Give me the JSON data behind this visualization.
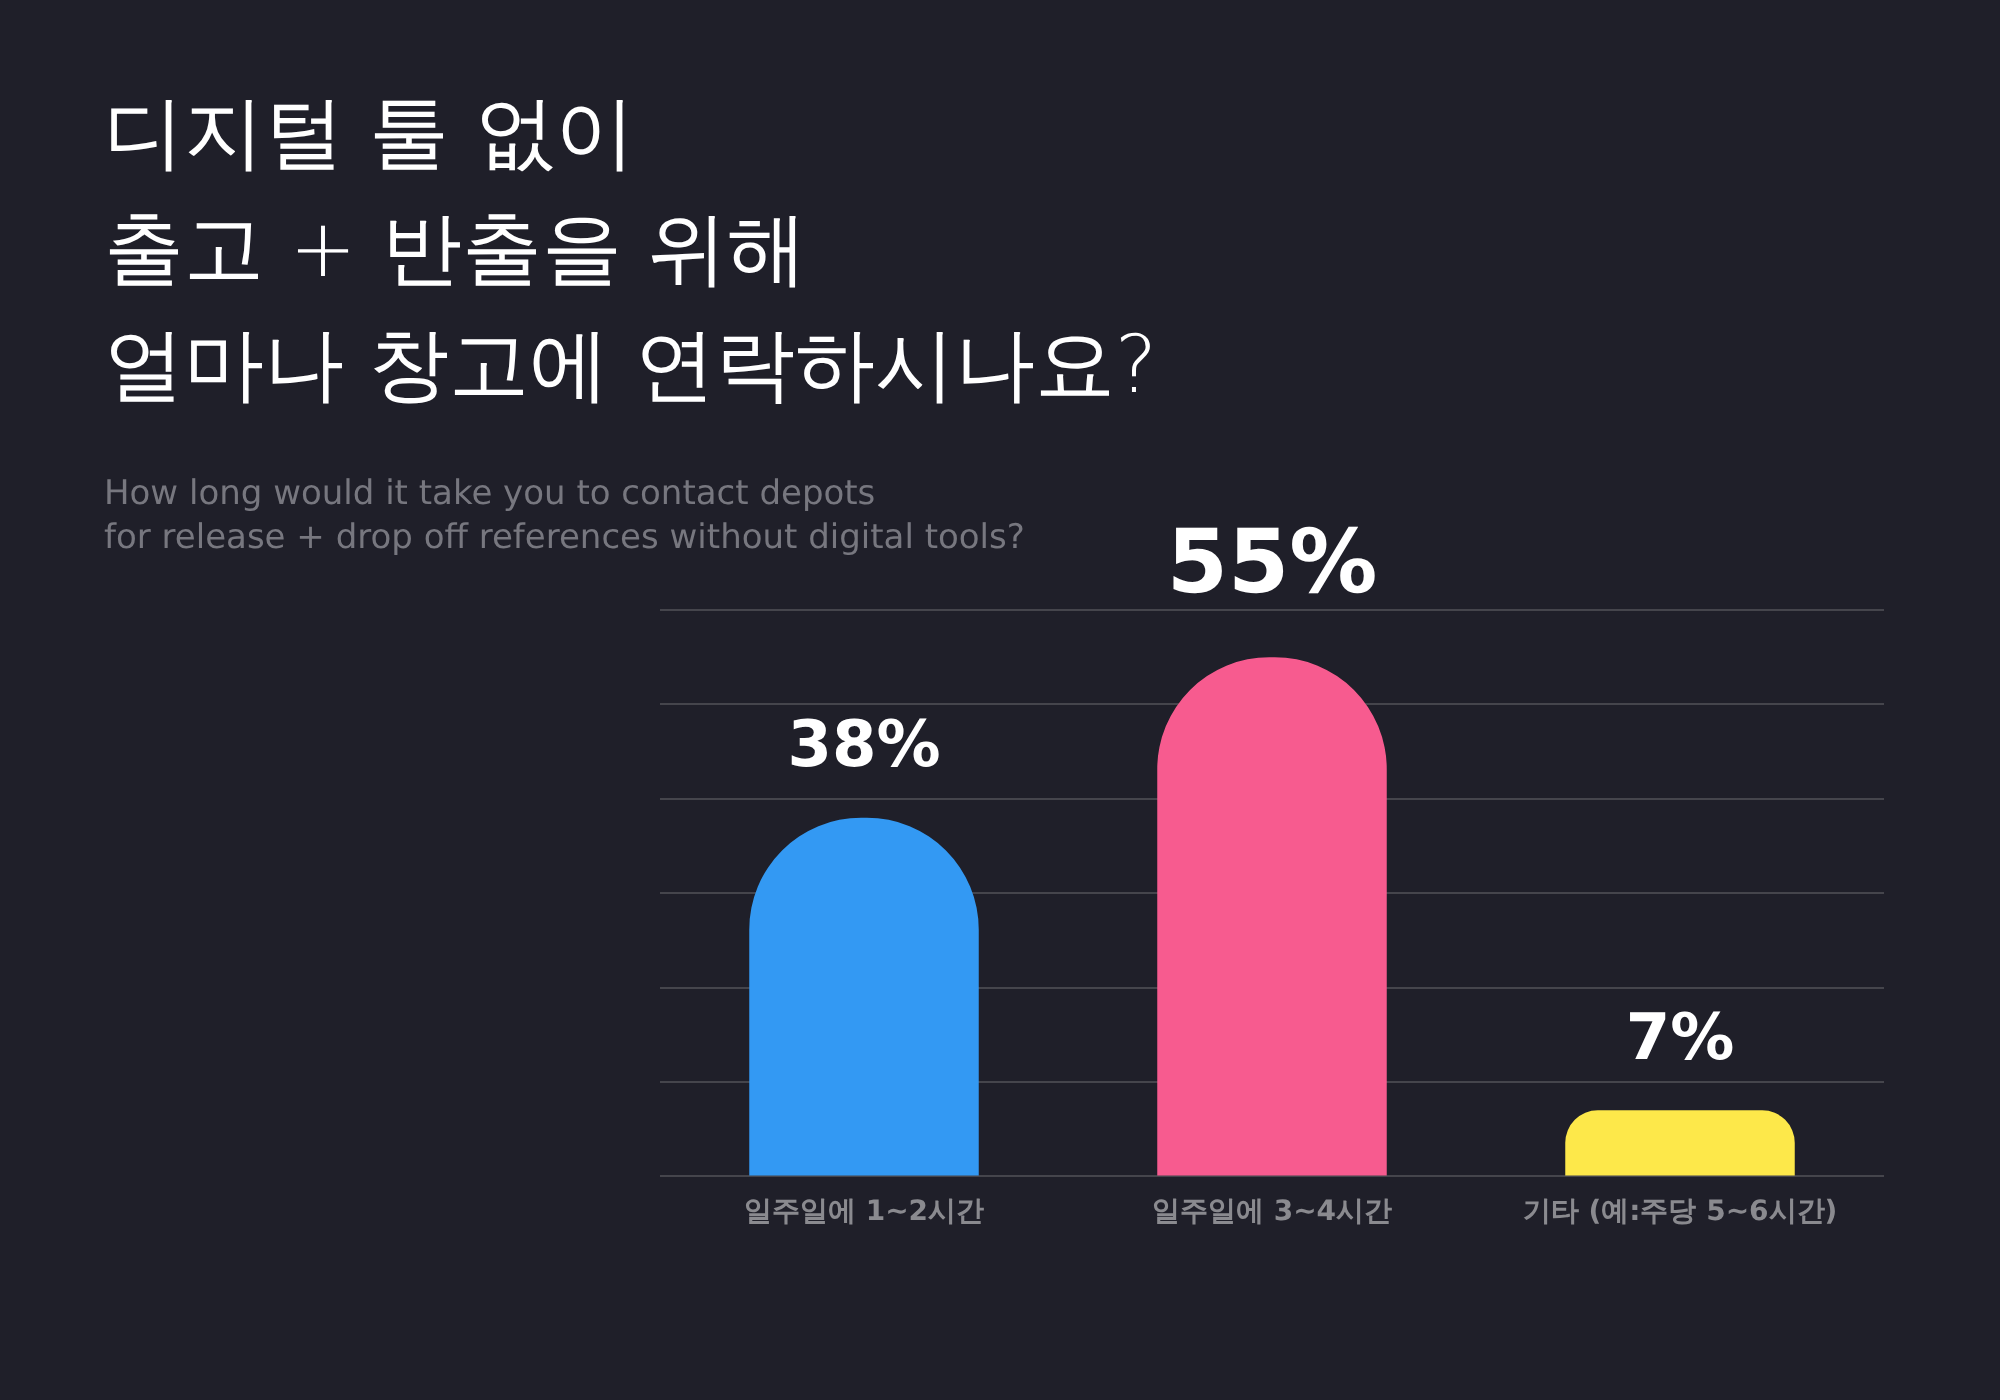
{
  "chart_data": {
    "type": "bar",
    "title": "디지털 툴 없이\n출고 + 반출을 위해\n얼마나 창고에 연락하시나요?",
    "subtitle": "How long would it take you to contact depots\nfor release + drop off references without digital tools?",
    "categories": [
      "일주일에 1~2시간",
      "일주일에 3~4시간",
      "기타 (예:주당 5~6시간)"
    ],
    "values": [
      38,
      55,
      7
    ],
    "colors": [
      "#3399f3",
      "#f75b8f",
      "#fde84a"
    ],
    "value_labels": [
      "38%",
      "55%",
      "7%"
    ],
    "ylim": [
      0,
      60
    ],
    "yticks": [
      {
        "value": 0,
        "label": null
      },
      {
        "value": 10,
        "label": null
      },
      {
        "value": 20,
        "label": null
      },
      {
        "value": 30,
        "label": null
      },
      {
        "value": 40,
        "label": null
      },
      {
        "value": 50,
        "label": null
      },
      {
        "value": 60,
        "label": null
      }
    ],
    "tick_labels": "x",
    "grid": "y",
    "legend": false
  }
}
